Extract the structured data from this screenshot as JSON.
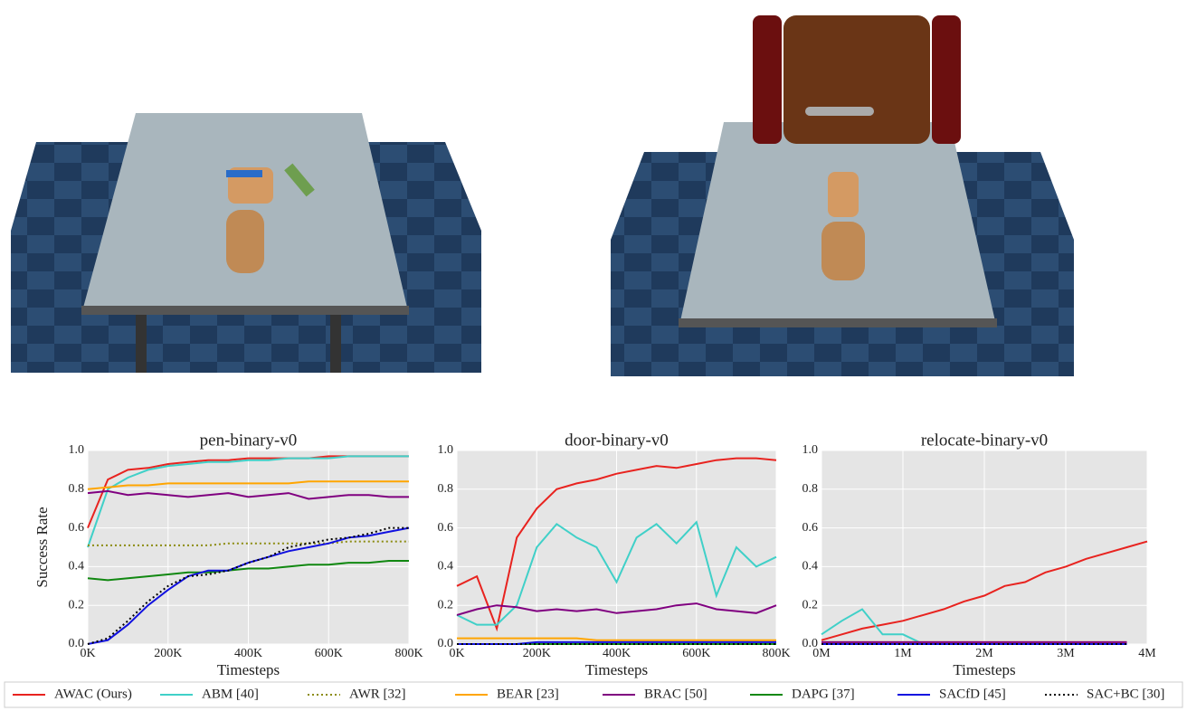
{
  "chart_data": [
    {
      "type": "line",
      "title": "pen-binary-v0",
      "xlabel": "Timesteps",
      "ylabel": "Success Rate",
      "x": [
        0,
        50000,
        100000,
        150000,
        200000,
        250000,
        300000,
        350000,
        400000,
        450000,
        500000,
        550000,
        600000,
        650000,
        700000,
        750000,
        800000
      ],
      "xlim": [
        0,
        800000
      ],
      "xticks": [
        {
          "value": 0,
          "label": "0K"
        },
        {
          "value": 200000,
          "label": "200K"
        },
        {
          "value": 400000,
          "label": "400K"
        },
        {
          "value": 600000,
          "label": "600K"
        },
        {
          "value": 800000,
          "label": "800K"
        }
      ],
      "ylim": [
        0,
        1
      ],
      "yticks": [
        {
          "value": 0,
          "label": "0.0"
        },
        {
          "value": 0.2,
          "label": "0.2"
        },
        {
          "value": 0.4,
          "label": "0.4"
        },
        {
          "value": 0.6,
          "label": "0.6"
        },
        {
          "value": 0.8,
          "label": "0.8"
        },
        {
          "value": 1,
          "label": "1.0"
        }
      ],
      "grid": true,
      "series": [
        {
          "name": "AWAC (Ours)",
          "color": "#e8231f",
          "style": "solid",
          "values": [
            0.6,
            0.85,
            0.9,
            0.91,
            0.93,
            0.94,
            0.95,
            0.95,
            0.96,
            0.96,
            0.96,
            0.96,
            0.97,
            0.97,
            0.97,
            0.97,
            0.97
          ]
        },
        {
          "name": "ABM [40]",
          "color": "#40d0c8",
          "style": "solid",
          "values": [
            0.5,
            0.8,
            0.86,
            0.9,
            0.92,
            0.93,
            0.94,
            0.94,
            0.95,
            0.95,
            0.96,
            0.96,
            0.96,
            0.97,
            0.97,
            0.97,
            0.97
          ]
        },
        {
          "name": "AWR [32]",
          "color": "#8c8c10",
          "style": "dotted",
          "values": [
            0.51,
            0.51,
            0.51,
            0.51,
            0.51,
            0.51,
            0.51,
            0.52,
            0.52,
            0.52,
            0.52,
            0.52,
            0.52,
            0.53,
            0.53,
            0.53,
            0.53
          ]
        },
        {
          "name": "BEAR [23]",
          "color": "#ffa500",
          "style": "solid",
          "values": [
            0.8,
            0.81,
            0.82,
            0.82,
            0.83,
            0.83,
            0.83,
            0.83,
            0.83,
            0.83,
            0.83,
            0.84,
            0.84,
            0.84,
            0.84,
            0.84,
            0.84
          ]
        },
        {
          "name": "BRAC [50]",
          "color": "#800080",
          "style": "solid",
          "values": [
            0.78,
            0.79,
            0.77,
            0.78,
            0.77,
            0.76,
            0.77,
            0.78,
            0.76,
            0.77,
            0.78,
            0.75,
            0.76,
            0.77,
            0.77,
            0.76,
            0.76
          ]
        },
        {
          "name": "DAPG [37]",
          "color": "#118811",
          "style": "solid",
          "values": [
            0.34,
            0.33,
            0.34,
            0.35,
            0.36,
            0.37,
            0.37,
            0.38,
            0.39,
            0.39,
            0.4,
            0.41,
            0.41,
            0.42,
            0.42,
            0.43,
            0.43
          ]
        },
        {
          "name": "SACfD [45]",
          "color": "#1010e0",
          "style": "solid",
          "values": [
            0,
            0.02,
            0.1,
            0.2,
            0.28,
            0.35,
            0.38,
            0.38,
            0.42,
            0.45,
            0.48,
            0.5,
            0.52,
            0.55,
            0.56,
            0.58,
            0.6
          ]
        },
        {
          "name": "SAC+BC [30]",
          "color": "#000000",
          "style": "dotted",
          "values": [
            0,
            0.03,
            0.12,
            0.22,
            0.3,
            0.35,
            0.36,
            0.38,
            0.42,
            0.45,
            0.5,
            0.52,
            0.54,
            0.55,
            0.57,
            0.6,
            0.6
          ]
        }
      ]
    },
    {
      "type": "line",
      "title": "door-binary-v0",
      "xlabel": "Timesteps",
      "x": [
        0,
        50000,
        100000,
        150000,
        200000,
        250000,
        300000,
        350000,
        400000,
        450000,
        500000,
        550000,
        600000,
        650000,
        700000,
        750000,
        800000
      ],
      "xlim": [
        0,
        800000
      ],
      "xticks": [
        {
          "value": 0,
          "label": "0K"
        },
        {
          "value": 200000,
          "label": "200K"
        },
        {
          "value": 400000,
          "label": "400K"
        },
        {
          "value": 600000,
          "label": "600K"
        },
        {
          "value": 800000,
          "label": "800K"
        }
      ],
      "ylim": [
        0,
        1
      ],
      "yticks": [
        {
          "value": 0,
          "label": "0.0"
        },
        {
          "value": 0.2,
          "label": "0.2"
        },
        {
          "value": 0.4,
          "label": "0.4"
        },
        {
          "value": 0.6,
          "label": "0.6"
        },
        {
          "value": 0.8,
          "label": "0.8"
        },
        {
          "value": 1,
          "label": "1.0"
        }
      ],
      "grid": true,
      "series": [
        {
          "name": "AWAC (Ours)",
          "color": "#e8231f",
          "style": "solid",
          "values": [
            0.3,
            0.35,
            0.08,
            0.55,
            0.7,
            0.8,
            0.83,
            0.85,
            0.88,
            0.9,
            0.92,
            0.91,
            0.93,
            0.95,
            0.96,
            0.96,
            0.95
          ]
        },
        {
          "name": "ABM [40]",
          "color": "#40d0c8",
          "style": "solid",
          "values": [
            0.15,
            0.1,
            0.1,
            0.2,
            0.5,
            0.62,
            0.55,
            0.5,
            0.32,
            0.55,
            0.62,
            0.52,
            0.63,
            0.25,
            0.5,
            0.4,
            0.45
          ]
        },
        {
          "name": "AWR [32]",
          "color": "#8c8c10",
          "style": "dotted",
          "values": [
            0,
            0,
            0,
            0,
            0,
            0,
            0,
            0,
            0,
            0,
            0,
            0,
            0,
            0,
            0,
            0,
            0
          ]
        },
        {
          "name": "BEAR [23]",
          "color": "#ffa500",
          "style": "solid",
          "values": [
            0.03,
            0.03,
            0.03,
            0.03,
            0.03,
            0.03,
            0.03,
            0.02,
            0.02,
            0.02,
            0.02,
            0.02,
            0.02,
            0.02,
            0.02,
            0.02,
            0.02
          ]
        },
        {
          "name": "BRAC [50]",
          "color": "#800080",
          "style": "solid",
          "values": [
            0.15,
            0.18,
            0.2,
            0.19,
            0.17,
            0.18,
            0.17,
            0.18,
            0.16,
            0.17,
            0.18,
            0.2,
            0.21,
            0.18,
            0.17,
            0.16,
            0.2
          ]
        },
        {
          "name": "DAPG [37]",
          "color": "#118811",
          "style": "solid",
          "values": [
            0,
            0,
            0,
            0,
            0,
            0,
            0,
            0,
            0,
            0,
            0,
            0,
            0,
            0,
            0,
            0,
            0
          ]
        },
        {
          "name": "SACfD [45]",
          "color": "#1010e0",
          "style": "solid",
          "values": [
            0,
            0,
            0,
            0,
            0.01,
            0.01,
            0.01,
            0.01,
            0.01,
            0.01,
            0.01,
            0.01,
            0.01,
            0.01,
            0.01,
            0.01,
            0.01
          ]
        },
        {
          "name": "SAC+BC [30]",
          "color": "#000000",
          "style": "dotted",
          "values": [
            0,
            0,
            0,
            0,
            0,
            0,
            0,
            0,
            0,
            0,
            0,
            0,
            0,
            0,
            0,
            0,
            0
          ]
        }
      ]
    },
    {
      "type": "line",
      "title": "relocate-binary-v0",
      "xlabel": "Timesteps",
      "x": [
        0,
        250000,
        500000,
        750000,
        1000000,
        1250000,
        1500000,
        1750000,
        2000000,
        2250000,
        2500000,
        2750000,
        3000000,
        3250000,
        3500000,
        3750000,
        4000000
      ],
      "xlim": [
        0,
        4000000
      ],
      "xticks": [
        {
          "value": 0,
          "label": "0M"
        },
        {
          "value": 1000000,
          "label": "1M"
        },
        {
          "value": 2000000,
          "label": "2M"
        },
        {
          "value": 3000000,
          "label": "3M"
        },
        {
          "value": 4000000,
          "label": "4M"
        }
      ],
      "ylim": [
        0,
        1
      ],
      "yticks": [
        {
          "value": 0,
          "label": "0.0"
        },
        {
          "value": 0.2,
          "label": "0.2"
        },
        {
          "value": 0.4,
          "label": "0.4"
        },
        {
          "value": 0.6,
          "label": "0.6"
        },
        {
          "value": 0.8,
          "label": "0.8"
        },
        {
          "value": 1,
          "label": "1.0"
        }
      ],
      "grid": true,
      "series": [
        {
          "name": "AWAC (Ours)",
          "color": "#e8231f",
          "style": "solid",
          "values": [
            0.02,
            0.05,
            0.08,
            0.1,
            0.12,
            0.15,
            0.18,
            0.22,
            0.25,
            0.3,
            0.32,
            0.37,
            0.4,
            0.44,
            0.47,
            0.5,
            0.53
          ]
        },
        {
          "name": "ABM [40]",
          "color": "#40d0c8",
          "style": "solid",
          "values": [
            0.05,
            0.12,
            0.18,
            0.05,
            0.05,
            0,
            0,
            0,
            0,
            0,
            0,
            0,
            0,
            0,
            0,
            0,
            null
          ]
        },
        {
          "name": "AWR [32]",
          "color": "#8c8c10",
          "style": "dotted",
          "values": [
            0,
            0,
            0,
            0,
            0,
            0,
            0,
            0,
            0,
            0,
            0,
            0,
            0,
            0,
            0,
            0,
            null
          ]
        },
        {
          "name": "BEAR [23]",
          "color": "#ffa500",
          "style": "solid",
          "values": [
            0.01,
            0.01,
            0.01,
            0.01,
            0.01,
            0.01,
            0.01,
            0.01,
            0.01,
            0.01,
            0.01,
            0.01,
            0.01,
            0.01,
            0.01,
            0.01,
            null
          ]
        },
        {
          "name": "BRAC [50]",
          "color": "#800080",
          "style": "solid",
          "values": [
            0.01,
            0.01,
            0.01,
            0.01,
            0.01,
            0.01,
            0.01,
            0.01,
            0.01,
            0.01,
            0.01,
            0.01,
            0.01,
            0.01,
            0.01,
            0.01,
            null
          ]
        },
        {
          "name": "DAPG [37]",
          "color": "#118811",
          "style": "solid",
          "values": [
            0,
            0,
            0,
            0,
            0,
            0,
            0,
            0,
            0,
            0,
            0,
            0,
            0,
            0,
            0,
            0,
            null
          ]
        },
        {
          "name": "SACfD [45]",
          "color": "#1010e0",
          "style": "solid",
          "values": [
            0,
            0,
            0,
            0,
            0,
            0,
            0,
            0,
            0,
            0,
            0,
            0,
            0,
            0,
            0,
            0,
            null
          ]
        },
        {
          "name": "SAC+BC [30]",
          "color": "#000000",
          "style": "dotted",
          "values": [
            0,
            0,
            0,
            0,
            0,
            0,
            0,
            0,
            0,
            0,
            0,
            0,
            0,
            0,
            0,
            0,
            null
          ]
        }
      ]
    }
  ]
}
